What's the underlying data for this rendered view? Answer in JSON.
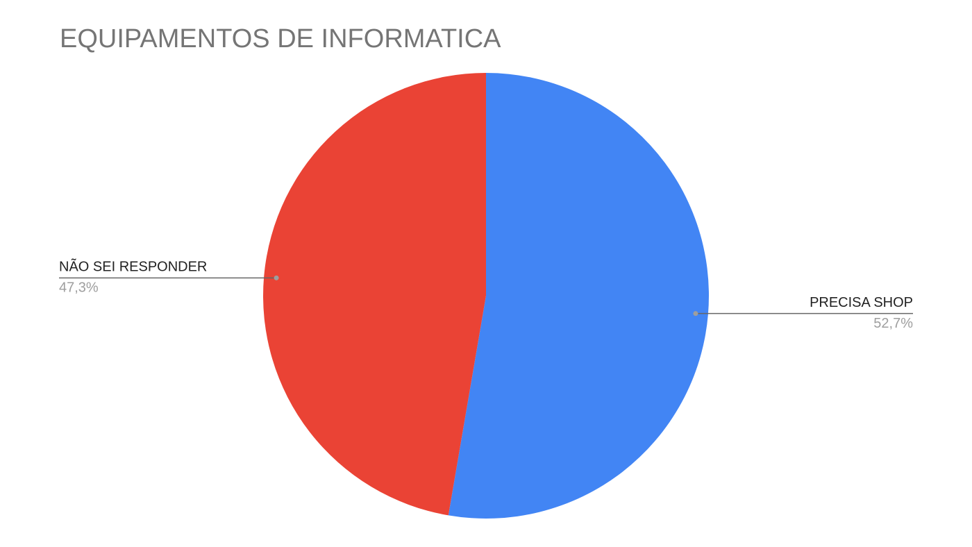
{
  "chart_data": {
    "type": "pie",
    "title": "EQUIPAMENTOS DE INFORMATICA",
    "categories": [
      "PRECISA SHOP",
      "NÃO SEI RESPONDER"
    ],
    "values": [
      52.7,
      47.3
    ],
    "value_labels": [
      "52,7%",
      "47,3%"
    ],
    "colors": [
      "#4285f4",
      "#ea4335"
    ]
  }
}
